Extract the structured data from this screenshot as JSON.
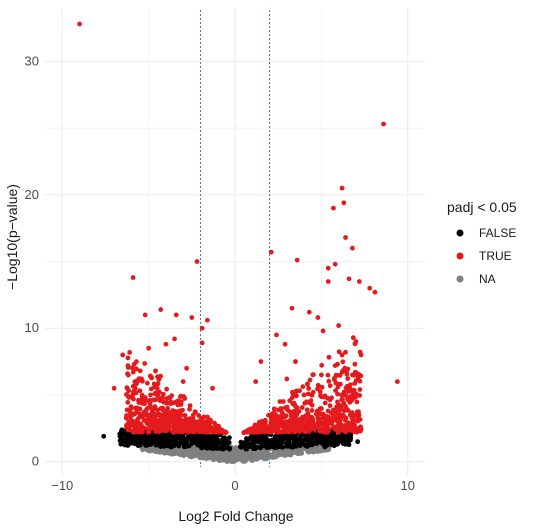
{
  "chart_data": {
    "type": "scatter",
    "title": "",
    "xlabel": "Log2 Fold Change",
    "ylabel": "−Log10(p−value)",
    "xlim": [
      -11,
      11
    ],
    "ylim": [
      -1,
      34
    ],
    "x_ticks": [
      -10,
      0,
      10
    ],
    "x_tick_labels": [
      "−10",
      "0",
      "10"
    ],
    "y_ticks": [
      0,
      10,
      20,
      30
    ],
    "y_tick_labels": [
      "0",
      "10",
      "20",
      "30"
    ],
    "grid": true,
    "threshold_lines_x": [
      -2,
      2
    ],
    "legend": {
      "title": "padj < 0.05",
      "placement": "right",
      "entries": [
        {
          "label": "FALSE",
          "color": "#000000"
        },
        {
          "label": "TRUE",
          "color": "#e41a1c"
        },
        {
          "label": "NA",
          "color": "#808080"
        }
      ]
    },
    "series": [
      {
        "name": "TRUE",
        "color": "#e41a1c",
        "points": [
          [
            -9.0,
            32.8
          ],
          [
            8.6,
            25.3
          ],
          [
            6.2,
            20.5
          ],
          [
            6.3,
            19.4
          ],
          [
            5.7,
            19.0
          ],
          [
            6.4,
            16.8
          ],
          [
            6.8,
            16.0
          ],
          [
            2.1,
            15.7
          ],
          [
            3.6,
            15.1
          ],
          [
            -2.2,
            15.0
          ],
          [
            5.4,
            14.5
          ],
          [
            5.8,
            14.8
          ],
          [
            -5.9,
            13.8
          ],
          [
            6.6,
            13.7
          ],
          [
            5.4,
            13.5
          ],
          [
            7.2,
            13.5
          ],
          [
            7.8,
            13.0
          ],
          [
            8.1,
            12.7
          ],
          [
            -5.2,
            11.0
          ],
          [
            -4.3,
            11.4
          ],
          [
            -3.4,
            11.0
          ],
          [
            -2.5,
            10.8
          ],
          [
            -1.6,
            10.6
          ],
          [
            -1.9,
            10.0
          ],
          [
            4.3,
            11.2
          ],
          [
            4.8,
            10.8
          ],
          [
            3.3,
            11.5
          ],
          [
            5.1,
            9.8
          ],
          [
            6.0,
            10.2
          ],
          [
            9.4,
            6.0
          ],
          [
            -6.5,
            8.0
          ],
          [
            -7.0,
            5.5
          ],
          [
            -6.2,
            7.2
          ],
          [
            -5.0,
            8.5
          ],
          [
            -4.0,
            8.8
          ],
          [
            -3.5,
            9.2
          ],
          [
            -2.8,
            7.0
          ],
          [
            -3.0,
            6.0
          ],
          [
            -4.5,
            5.5
          ],
          [
            -5.2,
            4.8
          ],
          [
            -6.0,
            4.0
          ],
          [
            -5.0,
            3.5
          ],
          [
            -4.0,
            3.2
          ],
          [
            -3.2,
            3.0
          ],
          [
            -2.5,
            2.8
          ],
          [
            2.5,
            2.8
          ],
          [
            3.1,
            3.0
          ],
          [
            4.0,
            3.3
          ],
          [
            4.8,
            3.6
          ],
          [
            5.5,
            4.2
          ],
          [
            6.2,
            5.0
          ],
          [
            6.8,
            6.5
          ],
          [
            7.3,
            8.0
          ],
          [
            7.0,
            9.0
          ],
          [
            6.4,
            8.2
          ],
          [
            5.8,
            7.2
          ],
          [
            5.0,
            6.5
          ],
          [
            4.2,
            5.8
          ],
          [
            3.5,
            7.5
          ],
          [
            2.9,
            8.8
          ],
          [
            2.4,
            9.5
          ],
          [
            3.0,
            6.2
          ],
          [
            2.6,
            4.5
          ],
          [
            -2.6,
            4.2
          ],
          [
            -3.8,
            4.8
          ],
          [
            -4.6,
            6.8
          ],
          [
            -1.9,
            8.9
          ],
          [
            1.5,
            7.5
          ],
          [
            1.2,
            6.0
          ],
          [
            -1.3,
            5.5
          ]
        ]
      },
      {
        "name": "FALSE",
        "color": "#000000",
        "points": [
          [
            -7.6,
            1.9
          ],
          [
            -5.6,
            1.2
          ],
          [
            -4.8,
            1.7
          ],
          [
            6.7,
            2.0
          ],
          [
            7.1,
            1.5
          ],
          [
            6.4,
            1.3
          ],
          [
            5.8,
            1.8
          ],
          [
            4.5,
            2.1
          ],
          [
            3.8,
            1.9
          ],
          [
            -3.6,
            1.6
          ],
          [
            -4.2,
            2.0
          ],
          [
            -2.9,
            1.4
          ],
          [
            2.4,
            1.3
          ],
          [
            3.1,
            1.6
          ],
          [
            5.2,
            1.1
          ]
        ]
      },
      {
        "name": "NA",
        "color": "#808080",
        "points": [
          [
            -4.5,
            0.9
          ],
          [
            -3.5,
            0.8
          ],
          [
            -2.5,
            0.7
          ],
          [
            -1.5,
            0.5
          ],
          [
            -0.8,
            0.3
          ],
          [
            0.0,
            0.1
          ],
          [
            0.8,
            0.3
          ],
          [
            1.5,
            0.5
          ],
          [
            2.5,
            0.7
          ],
          [
            3.5,
            0.8
          ],
          [
            4.5,
            0.9
          ]
        ]
      }
    ]
  }
}
